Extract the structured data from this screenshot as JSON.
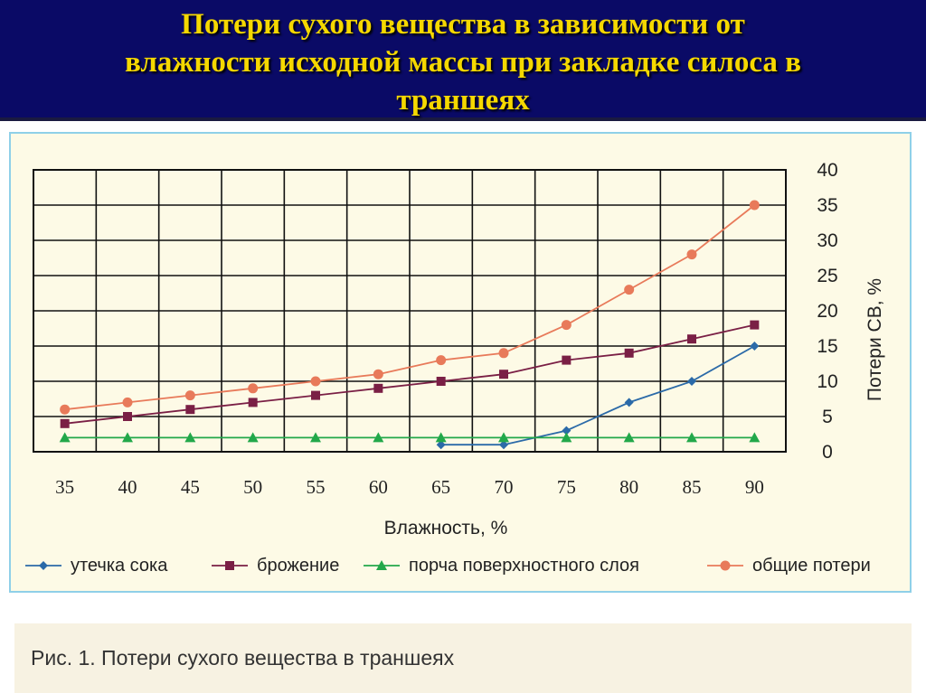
{
  "slide": {
    "title_lines": [
      "Потери сухого вещества в зависимости от",
      "влажности исходной массы при закладке силоса в",
      "траншеях"
    ],
    "caption": "Рис. 1. Потери сухого вещества в траншеях"
  },
  "colors": {
    "title": "#f5d800",
    "title_bg": "#0a0a66",
    "frame_border": "#8fd0e8",
    "frame_bg": "#fdfae6"
  },
  "chart_data": {
    "type": "line",
    "xlabel": "Влажность, %",
    "ylabel": "Потери СВ, %",
    "x": [
      35,
      40,
      45,
      50,
      55,
      60,
      65,
      70,
      75,
      80,
      85,
      90
    ],
    "ylim": [
      0,
      40
    ],
    "yticks": [
      0,
      5,
      10,
      15,
      20,
      25,
      30,
      35,
      40
    ],
    "grid": true,
    "y_axis_side": "right",
    "legend_position": "bottom",
    "series": [
      {
        "name": "утечка сока",
        "color": "#2b6aa8",
        "marker": "diamond",
        "values": [
          null,
          null,
          null,
          null,
          null,
          null,
          1,
          1,
          3,
          7,
          10,
          15
        ]
      },
      {
        "name": "брожение",
        "color": "#7a1f45",
        "marker": "square",
        "values": [
          4,
          5,
          6,
          7,
          8,
          9,
          10,
          11,
          13,
          14,
          16,
          18
        ]
      },
      {
        "name": "порча поверхностного слоя",
        "color": "#22a84a",
        "marker": "triangle",
        "values": [
          2,
          2,
          2,
          2,
          2,
          2,
          2,
          2,
          2,
          2,
          2,
          2
        ]
      },
      {
        "name": "общие потери",
        "color": "#e87a5a",
        "marker": "circle",
        "values": [
          6,
          7,
          8,
          9,
          10,
          11,
          13,
          14,
          18,
          23,
          28,
          35
        ]
      }
    ]
  }
}
